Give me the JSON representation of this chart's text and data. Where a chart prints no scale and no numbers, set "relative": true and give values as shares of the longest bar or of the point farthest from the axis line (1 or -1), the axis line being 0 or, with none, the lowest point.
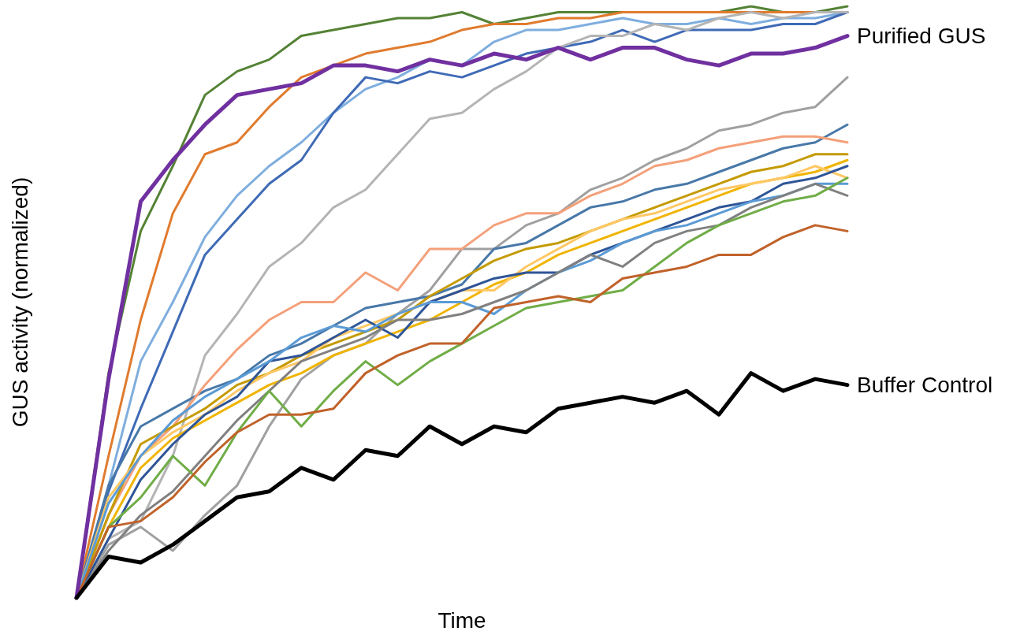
{
  "chart_data": {
    "type": "line",
    "relative": true,
    "xlabel": "Time",
    "ylabel": "GUS activity (normalized)",
    "line_style": "solid",
    "marker": "none",
    "categories": [
      null,
      null,
      null,
      null,
      null,
      null,
      null,
      null,
      null,
      null,
      null,
      null,
      null,
      null,
      null,
      null,
      null,
      null,
      null,
      null,
      null,
      null,
      null,
      null,
      null
    ],
    "series": [
      {
        "color": "#548235",
        "values": [
          0,
          0.38,
          0.62,
          0.73,
          0.85,
          0.89,
          0.91,
          0.95,
          0.96,
          0.97,
          0.98,
          0.98,
          0.99,
          0.97,
          0.98,
          0.99,
          0.99,
          0.99,
          0.99,
          0.99,
          0.99,
          1.0,
          0.99,
          0.99,
          1.0
        ]
      },
      {
        "color": "#e07b2e",
        "values": [
          0,
          0.24,
          0.47,
          0.65,
          0.75,
          0.77,
          0.83,
          0.88,
          0.9,
          0.92,
          0.93,
          0.94,
          0.96,
          0.97,
          0.97,
          0.98,
          0.98,
          0.99,
          0.99,
          0.99,
          0.99,
          0.99,
          0.99,
          0.99,
          0.99
        ]
      },
      {
        "color": "#7faede",
        "values": [
          0,
          0.19,
          0.4,
          0.5,
          0.61,
          0.68,
          0.73,
          0.77,
          0.82,
          0.86,
          0.88,
          0.91,
          0.9,
          0.94,
          0.96,
          0.96,
          0.97,
          0.98,
          0.97,
          0.97,
          0.98,
          0.97,
          0.98,
          0.98,
          0.99
        ]
      },
      {
        "color": "#3f6ab6",
        "values": [
          0,
          0.18,
          0.32,
          0.45,
          0.58,
          0.64,
          0.7,
          0.74,
          0.82,
          0.88,
          0.87,
          0.89,
          0.88,
          0.9,
          0.92,
          0.93,
          0.94,
          0.96,
          0.94,
          0.96,
          0.96,
          0.96,
          0.97,
          0.97,
          0.99
        ]
      },
      {
        "color": "#b4b4b4",
        "values": [
          0,
          0.1,
          0.13,
          0.24,
          0.41,
          0.48,
          0.56,
          0.6,
          0.66,
          0.69,
          0.75,
          0.81,
          0.82,
          0.86,
          0.89,
          0.93,
          0.95,
          0.95,
          0.97,
          0.96,
          0.98,
          0.99,
          0.98,
          0.99,
          0.99
        ]
      },
      {
        "color": "#a0a0a0",
        "values": [
          0,
          0.09,
          0.12,
          0.08,
          0.14,
          0.19,
          0.29,
          0.37,
          0.41,
          0.43,
          0.48,
          0.52,
          0.59,
          0.59,
          0.63,
          0.65,
          0.69,
          0.71,
          0.74,
          0.76,
          0.79,
          0.8,
          0.82,
          0.83,
          0.88
        ]
      },
      {
        "color": "#4878a8",
        "values": [
          0,
          0.19,
          0.29,
          0.32,
          0.35,
          0.37,
          0.41,
          0.43,
          0.46,
          0.49,
          0.5,
          0.51,
          0.53,
          0.59,
          0.6,
          0.63,
          0.66,
          0.67,
          0.69,
          0.7,
          0.72,
          0.74,
          0.76,
          0.77,
          0.8
        ]
      },
      {
        "color": "#f4a07a",
        "values": [
          0,
          0.14,
          0.24,
          0.29,
          0.36,
          0.42,
          0.47,
          0.5,
          0.5,
          0.55,
          0.52,
          0.59,
          0.59,
          0.63,
          0.65,
          0.65,
          0.68,
          0.7,
          0.73,
          0.74,
          0.76,
          0.77,
          0.78,
          0.78,
          0.77
        ]
      },
      {
        "color": "#c49a00",
        "values": [
          0,
          0.14,
          0.26,
          0.29,
          0.32,
          0.36,
          0.38,
          0.41,
          0.43,
          0.45,
          0.47,
          0.51,
          0.54,
          0.57,
          0.59,
          0.6,
          0.62,
          0.64,
          0.66,
          0.68,
          0.7,
          0.72,
          0.73,
          0.75,
          0.75
        ]
      },
      {
        "color": "#f0b400",
        "values": [
          0,
          0.12,
          0.22,
          0.27,
          0.3,
          0.33,
          0.36,
          0.38,
          0.41,
          0.43,
          0.45,
          0.47,
          0.5,
          0.53,
          0.55,
          0.58,
          0.6,
          0.62,
          0.64,
          0.66,
          0.68,
          0.7,
          0.71,
          0.72,
          0.74
        ]
      },
      {
        "color": "#ffc866",
        "values": [
          0,
          0.17,
          0.24,
          0.28,
          0.31,
          0.35,
          0.38,
          0.4,
          0.44,
          0.46,
          0.48,
          0.5,
          0.52,
          0.52,
          0.56,
          0.59,
          0.62,
          0.64,
          0.65,
          0.67,
          0.69,
          0.7,
          0.71,
          0.73,
          0.71
        ]
      },
      {
        "color": "#2f5597",
        "values": [
          0,
          0.1,
          0.2,
          0.26,
          0.31,
          0.34,
          0.4,
          0.41,
          0.44,
          0.47,
          0.44,
          0.5,
          0.52,
          0.54,
          0.55,
          0.55,
          0.58,
          0.6,
          0.62,
          0.64,
          0.66,
          0.67,
          0.7,
          0.71,
          0.73
        ]
      },
      {
        "color": "#5b9bd5",
        "values": [
          0,
          0.16,
          0.24,
          0.3,
          0.34,
          0.37,
          0.4,
          0.44,
          0.46,
          0.45,
          0.48,
          0.5,
          0.5,
          0.48,
          0.52,
          0.55,
          0.57,
          0.6,
          0.62,
          0.63,
          0.65,
          0.67,
          0.68,
          0.7,
          0.7
        ]
      },
      {
        "color": "#808080",
        "values": [
          0,
          0.08,
          0.14,
          0.18,
          0.24,
          0.3,
          0.35,
          0.4,
          0.42,
          0.44,
          0.47,
          0.47,
          0.48,
          0.5,
          0.52,
          0.55,
          0.58,
          0.56,
          0.6,
          0.62,
          0.63,
          0.66,
          0.68,
          0.7,
          0.68
        ]
      },
      {
        "color": "#70ad47",
        "values": [
          0,
          0.12,
          0.17,
          0.24,
          0.19,
          0.28,
          0.35,
          0.29,
          0.35,
          0.4,
          0.36,
          0.4,
          0.43,
          0.46,
          0.49,
          0.5,
          0.51,
          0.52,
          0.56,
          0.6,
          0.63,
          0.65,
          0.67,
          0.68,
          0.71
        ]
      },
      {
        "color": "#c0622a",
        "values": [
          0,
          0.12,
          0.13,
          0.17,
          0.23,
          0.28,
          0.31,
          0.31,
          0.32,
          0.38,
          0.41,
          0.43,
          0.43,
          0.49,
          0.5,
          0.51,
          0.5,
          0.54,
          0.55,
          0.56,
          0.58,
          0.58,
          0.61,
          0.63,
          0.62
        ]
      },
      {
        "name": "Purified GUS",
        "color": "#7030a0",
        "values": [
          0,
          0.37,
          0.67,
          0.74,
          0.8,
          0.85,
          0.86,
          0.87,
          0.9,
          0.9,
          0.89,
          0.91,
          0.9,
          0.92,
          0.91,
          0.93,
          0.91,
          0.93,
          0.93,
          0.91,
          0.9,
          0.92,
          0.92,
          0.93,
          0.95
        ]
      },
      {
        "name": "Buffer Control",
        "color": "#000000",
        "values": [
          0,
          0.07,
          0.06,
          0.09,
          0.13,
          0.17,
          0.18,
          0.22,
          0.2,
          0.25,
          0.24,
          0.29,
          0.26,
          0.29,
          0.28,
          0.32,
          0.33,
          0.34,
          0.33,
          0.35,
          0.31,
          0.38,
          0.35,
          0.37,
          0.36
        ]
      }
    ]
  }
}
